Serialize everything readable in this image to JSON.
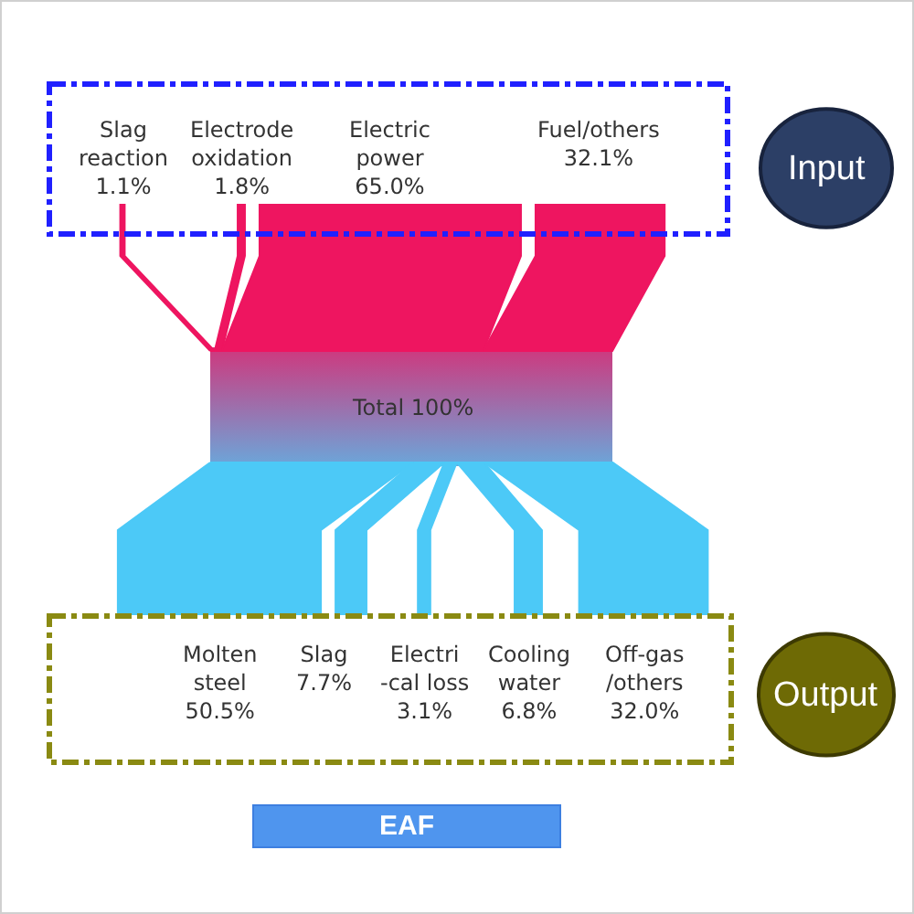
{
  "chart_data": {
    "type": "other",
    "title": "EAF",
    "categories": [
      "Slag\nreaction",
      "Electrode\noxidation",
      "Electric\npower",
      "Fuel/others",
      "Molten\nsteel",
      "Slag",
      "Electri\n-cal loss",
      "Cooling\nwater",
      "Off-gas\n/others"
    ],
    "series": [
      {
        "color": "#ee1560",
        "values": [
          1.1,
          1.8,
          65.0,
          32.1,
          null,
          null,
          null,
          null,
          null
        ],
        "value_labels": [
          "1.1%",
          "1.8%",
          "65.0%",
          "32.1%",
          null,
          null,
          null,
          null,
          null
        ]
      },
      {
        "color": "#4cc9f7",
        "values": [
          null,
          null,
          null,
          null,
          50.5,
          7.7,
          3.1,
          6.8,
          32.0
        ],
        "value_labels": [
          null,
          null,
          null,
          null,
          "50.5%",
          "7.7%",
          "3.1%",
          "6.8%",
          "32.0%"
        ]
      }
    ],
    "annotations": [
      "Total 100%",
      "Input",
      "Output"
    ]
  }
}
